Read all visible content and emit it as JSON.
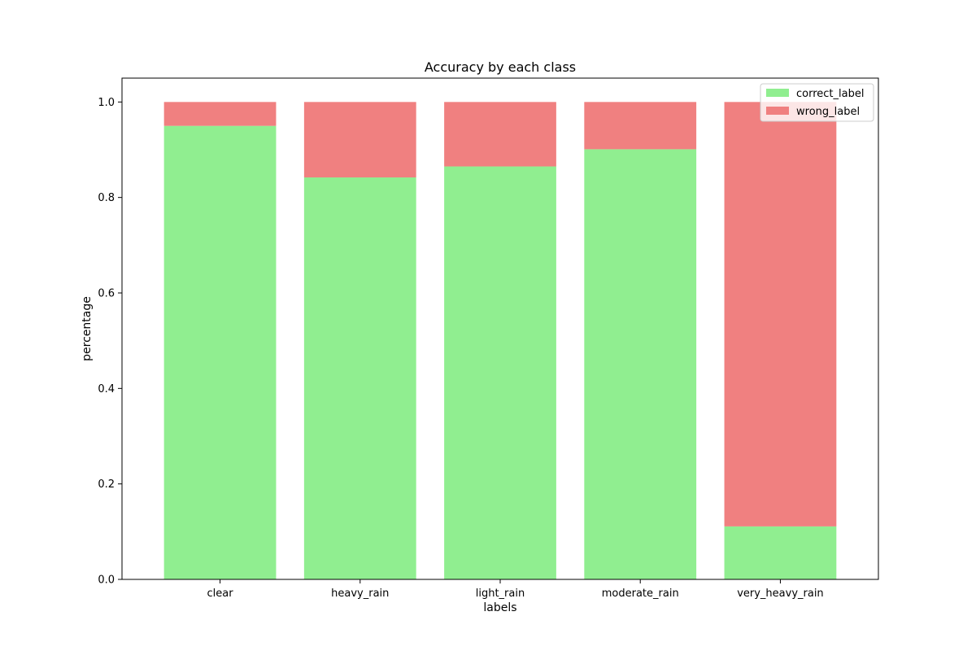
{
  "chart_data": {
    "type": "bar",
    "stacked": true,
    "title": "Accuracy by each class",
    "xlabel": "labels",
    "ylabel": "percentage",
    "categories": [
      "clear",
      "heavy_rain",
      "light_rain",
      "moderate_rain",
      "very_heavy_rain"
    ],
    "series": [
      {
        "name": "correct_label",
        "color": "#90ee90",
        "values": [
          0.95,
          0.842,
          0.865,
          0.901,
          0.111
        ]
      },
      {
        "name": "wrong_label",
        "color": "#f08080",
        "values": [
          0.05,
          0.158,
          0.135,
          0.099,
          0.889
        ]
      }
    ],
    "ylim": [
      0,
      1.05
    ],
    "yticks": [
      0.0,
      0.2,
      0.4,
      0.6,
      0.8,
      1.0
    ],
    "grid": false,
    "legend_position": "top-right"
  }
}
